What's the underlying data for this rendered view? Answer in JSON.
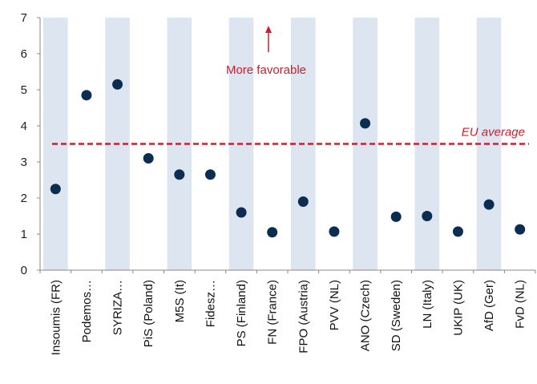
{
  "chart_data": {
    "type": "scatter",
    "categories": [
      "Insoumis (FR)",
      "Podemos…",
      "SYRIZA…",
      "PiS (Poland)",
      "M5S (It)",
      "Fidesz…",
      "PS (Finland)",
      "FN (France)",
      "FPO (Austria)",
      "PVV (NL)",
      "ANO (Czech)",
      "SD (Sweden)",
      "LN (Italy)",
      "UKIP (UK)",
      "AfD (Ger)",
      "FvD (NL)"
    ],
    "values": [
      2.25,
      4.85,
      5.15,
      3.1,
      2.65,
      2.65,
      1.6,
      1.05,
      1.9,
      1.07,
      4.07,
      1.48,
      1.5,
      1.07,
      1.82,
      1.13
    ],
    "ylim": [
      0,
      7
    ],
    "yticks": [
      "0",
      "1",
      "2",
      "3",
      "4",
      "5",
      "6",
      "7"
    ],
    "reference_line": {
      "label": "EU average",
      "value": 3.5,
      "color": "#c8202f"
    },
    "annotation": {
      "text": "More favorable",
      "color": "#c8202f"
    },
    "colors": {
      "marker": "#0b2d52",
      "band": "#dde5f0",
      "axis": "#888888"
    },
    "xlabel": "",
    "ylabel": "",
    "title": ""
  }
}
